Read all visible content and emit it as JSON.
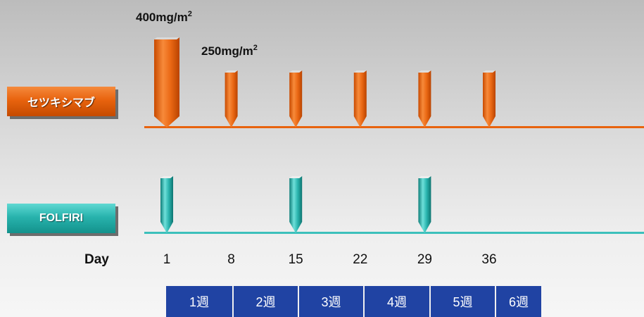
{
  "loading_dose": {
    "value": "400",
    "unit": "mg/m",
    "sup": "2"
  },
  "maintenance_dose": {
    "value": "250",
    "unit": "mg/m",
    "sup": "2"
  },
  "drug_a": {
    "label": "セツキシマブ",
    "color": "#e8630e",
    "days": [
      1,
      8,
      15,
      22,
      29,
      36
    ]
  },
  "drug_b": {
    "label": "FOLFIRI",
    "color": "#2bb5af",
    "days": [
      1,
      15,
      29
    ]
  },
  "days_axis": {
    "title": "Day",
    "ticks": [
      "1",
      "8",
      "15",
      "22",
      "29",
      "36"
    ]
  },
  "weeks": [
    "1週",
    "2週",
    "3週",
    "4週",
    "5週",
    "6週"
  ]
}
